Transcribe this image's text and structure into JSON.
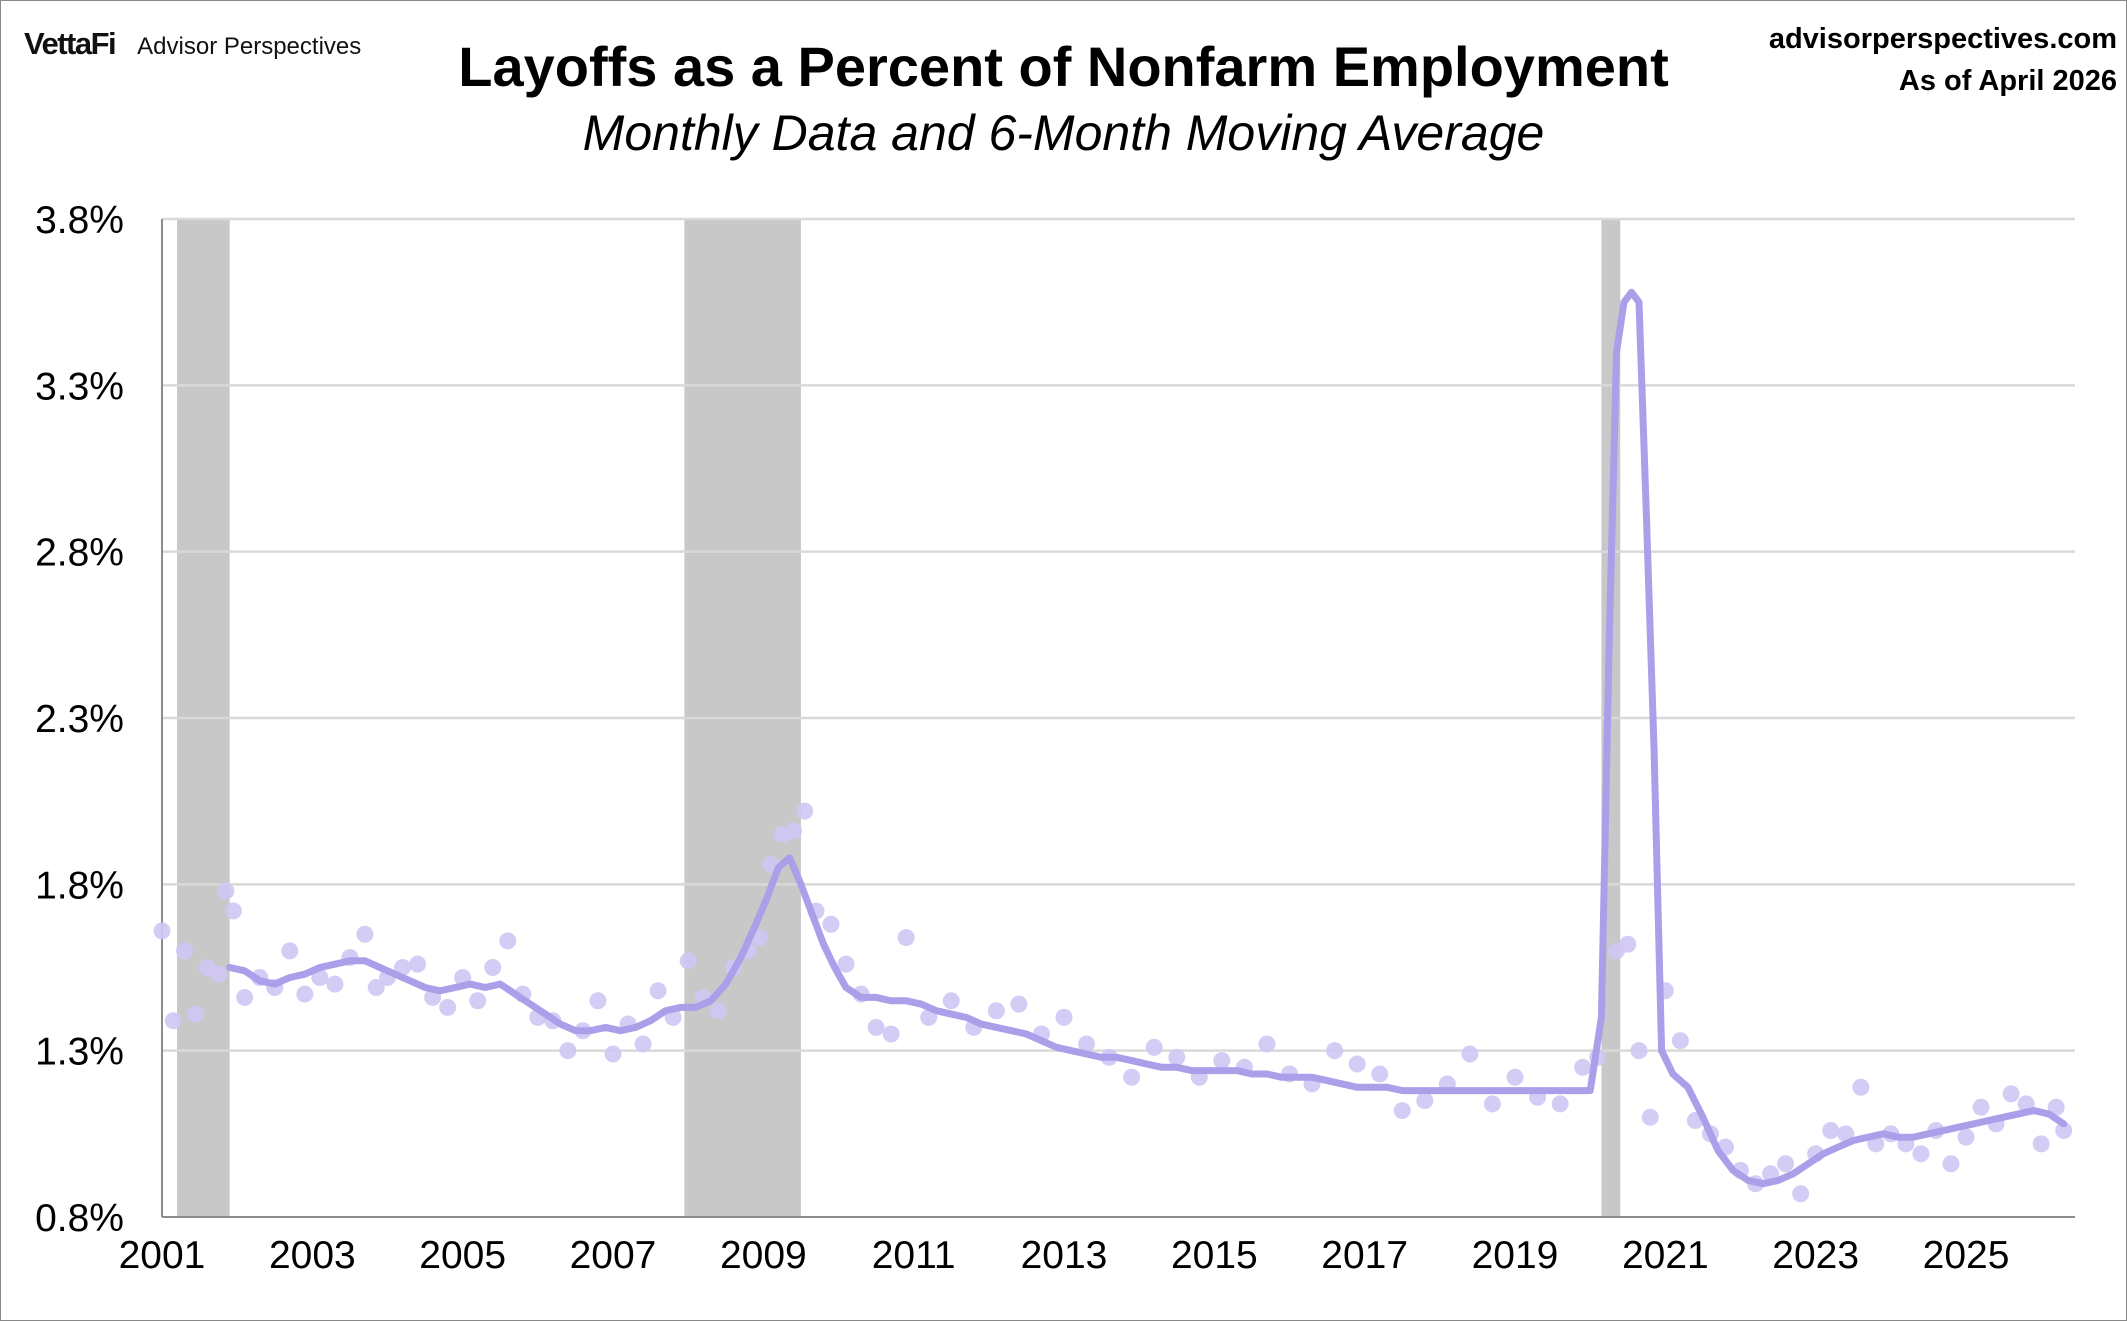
{
  "header": {
    "logo_text": "VettaFi",
    "brand_name": "Advisor Perspectives",
    "site_url": "advisorperspectives.com",
    "as_of": "As of April 2026"
  },
  "colors": {
    "series": "#ab9fea",
    "points": "#cfc7f3",
    "recession": "#c8c8c8",
    "grid": "#d9d9d9"
  },
  "chart_data": {
    "type": "line",
    "title": "Layoffs as a Percent of Nonfarm Employment",
    "subtitle": "Monthly Data and 6-Month Moving Average",
    "xlabel": "",
    "ylabel": "",
    "xlim": [
      2001.0,
      2026.45
    ],
    "ylim": [
      0.8,
      3.8
    ],
    "y_ticks": [
      0.8,
      1.3,
      1.8,
      2.3,
      2.8,
      3.3,
      3.8
    ],
    "y_tick_labels": [
      "0.8%",
      "1.3%",
      "1.8%",
      "2.3%",
      "2.8%",
      "3.3%",
      "3.8%"
    ],
    "x_ticks": [
      2001,
      2003,
      2005,
      2007,
      2009,
      2011,
      2013,
      2015,
      2017,
      2019,
      2021,
      2023,
      2025
    ],
    "x_tick_labels": [
      "2001",
      "2003",
      "2005",
      "2007",
      "2009",
      "2011",
      "2013",
      "2015",
      "2017",
      "2019",
      "2021",
      "2023",
      "2025"
    ],
    "grid": true,
    "legend": "none",
    "recessions": [
      [
        2001.2,
        2001.9
      ],
      [
        2007.95,
        2009.5
      ],
      [
        2020.15,
        2020.4
      ]
    ],
    "series": [
      {
        "kind": "scatter",
        "x": [
          2001.0,
          2001.15,
          2001.3,
          2001.45,
          2001.6,
          2001.75,
          2001.85,
          2001.95,
          2002.1,
          2002.3,
          2002.5,
          2002.7,
          2002.9,
          2003.1,
          2003.3,
          2003.5,
          2003.7,
          2003.85,
          2004.0,
          2004.2,
          2004.4,
          2004.6,
          2004.8,
          2005.0,
          2005.2,
          2005.4,
          2005.6,
          2005.8,
          2006.0,
          2006.2,
          2006.4,
          2006.6,
          2006.8,
          2007.0,
          2007.2,
          2007.4,
          2007.6,
          2007.8,
          2008.0,
          2008.2,
          2008.4,
          2008.6,
          2008.8,
          2008.95,
          2009.1,
          2009.25,
          2009.4,
          2009.55,
          2009.7,
          2009.9,
          2010.1,
          2010.3,
          2010.5,
          2010.7,
          2010.9,
          2011.2,
          2011.5,
          2011.8,
          2012.1,
          2012.4,
          2012.7,
          2013.0,
          2013.3,
          2013.6,
          2013.9,
          2014.2,
          2014.5,
          2014.8,
          2015.1,
          2015.4,
          2015.7,
          2016.0,
          2016.3,
          2016.6,
          2016.9,
          2017.2,
          2017.5,
          2017.8,
          2018.1,
          2018.4,
          2018.7,
          2019.0,
          2019.3,
          2019.6,
          2019.9,
          2020.1,
          2020.35,
          2020.5,
          2020.65,
          2020.8,
          2021.0,
          2021.2,
          2021.4,
          2021.6,
          2021.8,
          2022.0,
          2022.2,
          2022.4,
          2022.6,
          2022.8,
          2023.0,
          2023.2,
          2023.4,
          2023.6,
          2023.8,
          2024.0,
          2024.2,
          2024.4,
          2024.6,
          2024.8,
          2025.0,
          2025.2,
          2025.4,
          2025.6,
          2025.8,
          2026.0,
          2026.2,
          2026.3
        ],
        "y": [
          1.66,
          1.39,
          1.6,
          1.41,
          1.55,
          1.53,
          1.78,
          1.72,
          1.46,
          1.52,
          1.49,
          1.6,
          1.47,
          1.52,
          1.5,
          1.58,
          1.65,
          1.49,
          1.52,
          1.55,
          1.56,
          1.46,
          1.43,
          1.52,
          1.45,
          1.55,
          1.63,
          1.47,
          1.4,
          1.39,
          1.3,
          1.36,
          1.45,
          1.29,
          1.38,
          1.32,
          1.48,
          1.4,
          1.57,
          1.46,
          1.42,
          1.55,
          1.6,
          1.64,
          1.86,
          1.95,
          1.96,
          2.02,
          1.72,
          1.68,
          1.56,
          1.47,
          1.37,
          1.35,
          1.64,
          1.4,
          1.45,
          1.37,
          1.42,
          1.44,
          1.35,
          1.4,
          1.32,
          1.28,
          1.22,
          1.31,
          1.28,
          1.22,
          1.27,
          1.25,
          1.32,
          1.23,
          1.2,
          1.3,
          1.26,
          1.23,
          1.12,
          1.15,
          1.2,
          1.29,
          1.14,
          1.22,
          1.16,
          1.14,
          1.25,
          1.28,
          1.6,
          1.62,
          1.3,
          1.1,
          1.48,
          1.33,
          1.09,
          1.05,
          1.01,
          0.94,
          0.9,
          0.93,
          0.96,
          0.87,
          0.99,
          1.06,
          1.05,
          1.19,
          1.02,
          1.05,
          1.02,
          0.99,
          1.06,
          0.96,
          1.04,
          1.13,
          1.08,
          1.17,
          1.14,
          1.02,
          1.13,
          1.06
        ]
      },
      {
        "kind": "line",
        "x": [
          2001.9,
          2002.1,
          2002.3,
          2002.5,
          2002.7,
          2002.9,
          2003.1,
          2003.3,
          2003.5,
          2003.7,
          2003.9,
          2004.1,
          2004.3,
          2004.5,
          2004.7,
          2004.9,
          2005.1,
          2005.3,
          2005.5,
          2005.7,
          2005.9,
          2006.1,
          2006.3,
          2006.5,
          2006.7,
          2006.9,
          2007.1,
          2007.3,
          2007.5,
          2007.7,
          2007.9,
          2008.1,
          2008.3,
          2008.5,
          2008.7,
          2008.9,
          2009.05,
          2009.2,
          2009.35,
          2009.5,
          2009.65,
          2009.8,
          2009.95,
          2010.1,
          2010.3,
          2010.5,
          2010.7,
          2010.9,
          2011.1,
          2011.3,
          2011.5,
          2011.7,
          2011.9,
          2012.1,
          2012.3,
          2012.5,
          2012.7,
          2012.9,
          2013.1,
          2013.3,
          2013.5,
          2013.7,
          2013.9,
          2014.1,
          2014.3,
          2014.5,
          2014.7,
          2014.9,
          2015.1,
          2015.3,
          2015.5,
          2015.7,
          2015.9,
          2016.1,
          2016.3,
          2016.5,
          2016.7,
          2016.9,
          2017.1,
          2017.3,
          2017.5,
          2017.7,
          2017.9,
          2018.1,
          2018.3,
          2018.5,
          2018.7,
          2018.9,
          2019.1,
          2019.3,
          2019.5,
          2019.7,
          2019.9,
          2020.0,
          2020.15,
          2020.25,
          2020.35,
          2020.45,
          2020.55,
          2020.65,
          2020.75,
          2020.85,
          2020.95,
          2021.1,
          2021.3,
          2021.5,
          2021.7,
          2021.9,
          2022.1,
          2022.3,
          2022.5,
          2022.7,
          2022.9,
          2023.1,
          2023.3,
          2023.5,
          2023.7,
          2023.9,
          2024.1,
          2024.3,
          2024.5,
          2024.7,
          2024.9,
          2025.1,
          2025.3,
          2025.5,
          2025.7,
          2025.9,
          2026.1,
          2026.3
        ],
        "y": [
          1.55,
          1.54,
          1.51,
          1.5,
          1.52,
          1.53,
          1.55,
          1.56,
          1.57,
          1.57,
          1.55,
          1.53,
          1.51,
          1.49,
          1.48,
          1.49,
          1.5,
          1.49,
          1.5,
          1.47,
          1.44,
          1.41,
          1.38,
          1.36,
          1.36,
          1.37,
          1.36,
          1.37,
          1.39,
          1.42,
          1.43,
          1.43,
          1.45,
          1.5,
          1.58,
          1.68,
          1.76,
          1.85,
          1.88,
          1.8,
          1.71,
          1.62,
          1.55,
          1.49,
          1.46,
          1.46,
          1.45,
          1.45,
          1.44,
          1.42,
          1.41,
          1.4,
          1.38,
          1.37,
          1.36,
          1.35,
          1.33,
          1.31,
          1.3,
          1.29,
          1.28,
          1.28,
          1.27,
          1.26,
          1.25,
          1.25,
          1.24,
          1.24,
          1.24,
          1.24,
          1.23,
          1.23,
          1.22,
          1.22,
          1.22,
          1.21,
          1.2,
          1.19,
          1.19,
          1.19,
          1.18,
          1.18,
          1.18,
          1.18,
          1.18,
          1.18,
          1.18,
          1.18,
          1.18,
          1.18,
          1.18,
          1.18,
          1.18,
          1.18,
          1.4,
          2.5,
          3.4,
          3.55,
          3.58,
          3.55,
          2.9,
          2.2,
          1.3,
          1.23,
          1.19,
          1.1,
          1.0,
          0.94,
          0.91,
          0.9,
          0.91,
          0.93,
          0.96,
          0.99,
          1.01,
          1.03,
          1.04,
          1.05,
          1.04,
          1.04,
          1.05,
          1.06,
          1.07,
          1.08,
          1.09,
          1.1,
          1.11,
          1.12,
          1.11,
          1.08
        ]
      }
    ]
  }
}
